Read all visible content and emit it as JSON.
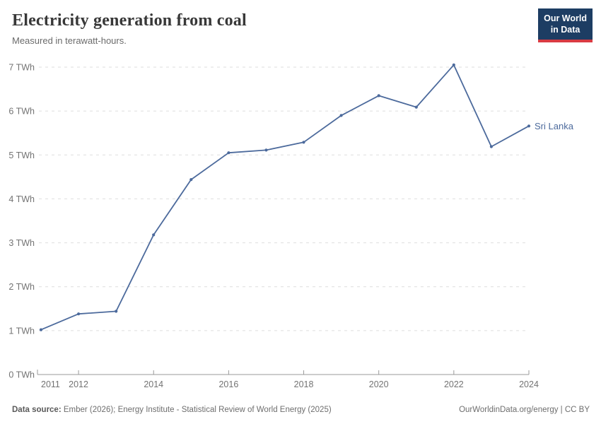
{
  "header": {
    "title": "Electricity generation from coal",
    "subtitle": "Measured in terawatt-hours."
  },
  "logo": {
    "line1": "Our World",
    "line2": "in Data",
    "bg_color": "#1d3d63",
    "bar_color": "#d93b43"
  },
  "chart_data": {
    "type": "line",
    "title": "Electricity generation from coal",
    "unit": "TWh",
    "x": [
      2011,
      2012,
      2013,
      2014,
      2015,
      2016,
      2017,
      2018,
      2019,
      2020,
      2021,
      2022,
      2023,
      2024
    ],
    "series": [
      {
        "name": "Sri Lanka",
        "values": [
          1.02,
          1.38,
          1.44,
          3.18,
          4.44,
          5.05,
          5.11,
          5.29,
          5.9,
          6.35,
          6.09,
          7.05,
          5.19,
          5.66
        ]
      }
    ],
    "xlabel": "",
    "ylabel": "",
    "ylim": [
      0,
      7
    ],
    "yticks": [
      {
        "v": 0,
        "label": "0 TWh"
      },
      {
        "v": 1,
        "label": "1 TWh"
      },
      {
        "v": 2,
        "label": "2 TWh"
      },
      {
        "v": 3,
        "label": "3 TWh"
      },
      {
        "v": 4,
        "label": "4 TWh"
      },
      {
        "v": 5,
        "label": "5 TWh"
      },
      {
        "v": 6,
        "label": "6 TWh"
      },
      {
        "v": 7,
        "label": "7 TWh"
      }
    ],
    "xticks": [
      {
        "v": 2011,
        "label": "2011"
      },
      {
        "v": 2012,
        "label": "2012"
      },
      {
        "v": 2014,
        "label": "2014"
      },
      {
        "v": 2016,
        "label": "2016"
      },
      {
        "v": 2018,
        "label": "2018"
      },
      {
        "v": 2020,
        "label": "2020"
      },
      {
        "v": 2022,
        "label": "2022"
      },
      {
        "v": 2024,
        "label": "2024"
      }
    ],
    "grid": "horizontal-dashed",
    "legend_position": "line-end-label",
    "line_color": "#4c6a9c",
    "grid_color": "#dedede",
    "axis_color": "#9a9a9a",
    "tick_label_color": "#737373"
  },
  "footer": {
    "source_label": "Data source:",
    "source_text": " Ember (2026); Energy Institute - Statistical Review of World Energy (2025)",
    "credit": "OurWorldinData.org/energy | CC BY"
  }
}
